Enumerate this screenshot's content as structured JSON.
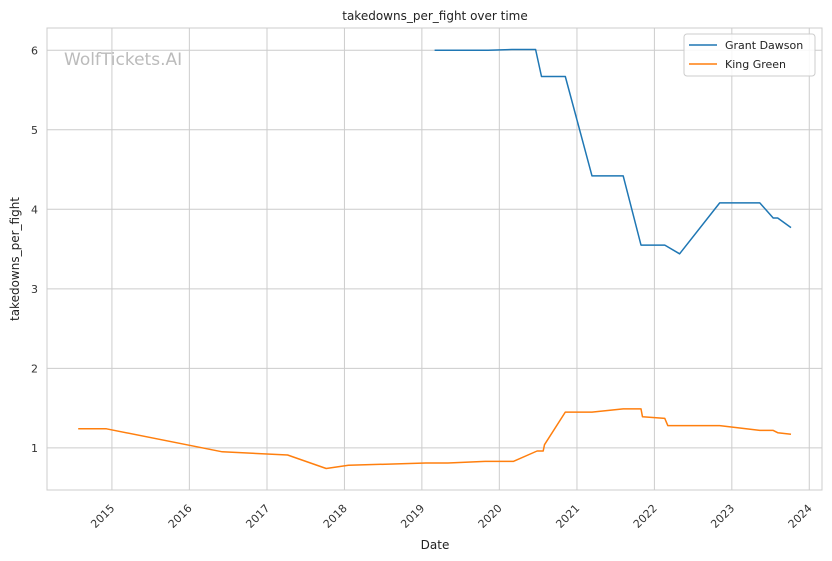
{
  "chart_data": {
    "type": "line",
    "title": "takedowns_per_fight over time",
    "xlabel": "Date",
    "ylabel": "takedowns_per_fight",
    "watermark": "WolfTickets.AI",
    "x_ticks": [
      "2015",
      "2016",
      "2017",
      "2018",
      "2019",
      "2020",
      "2021",
      "2022",
      "2023",
      "2024"
    ],
    "y_ticks": [
      1,
      2,
      3,
      4,
      5,
      6
    ],
    "xlim": [
      "2014-03-01",
      "2024-03-01"
    ],
    "ylim": [
      0.47,
      6.28
    ],
    "grid": true,
    "legend_position": "top-right",
    "series": [
      {
        "name": "Grant Dawson",
        "color": "#1f77b4",
        "x": [
          "2019-03-02",
          "2019-11-09",
          "2020-02-29",
          "2020-06-20",
          "2020-07-18",
          "2020-11-07",
          "2021-03-13",
          "2021-08-07",
          "2021-10-30",
          "2022-02-19",
          "2022-04-30",
          "2022-11-05",
          "2023-05-13",
          "2023-07-15",
          "2023-08-05",
          "2023-10-07"
        ],
        "values": [
          6.0,
          6.0,
          6.01,
          6.01,
          5.67,
          5.67,
          4.42,
          4.42,
          3.55,
          3.55,
          3.44,
          4.08,
          4.08,
          3.89,
          3.89,
          3.77
        ]
      },
      {
        "name": "King Green",
        "color": "#ff7f0e",
        "x": [
          "2014-07-26",
          "2014-12-06",
          "2016-06-04",
          "2017-04-08",
          "2017-10-07",
          "2018-01-20",
          "2019-01-19",
          "2019-05-04",
          "2019-10-26",
          "2020-03-07",
          "2020-06-27",
          "2020-07-26",
          "2020-08-01",
          "2020-11-07",
          "2021-03-13",
          "2021-08-07",
          "2021-10-30",
          "2021-11-06",
          "2022-02-19",
          "2022-03-05",
          "2022-11-05",
          "2023-05-13",
          "2023-07-15",
          "2023-08-05",
          "2023-10-07"
        ],
        "values": [
          1.24,
          1.24,
          0.95,
          0.91,
          0.74,
          0.78,
          0.81,
          0.81,
          0.83,
          0.83,
          0.96,
          0.96,
          1.04,
          1.45,
          1.45,
          1.49,
          1.49,
          1.39,
          1.37,
          1.28,
          1.28,
          1.22,
          1.22,
          1.19,
          1.17
        ]
      }
    ]
  }
}
